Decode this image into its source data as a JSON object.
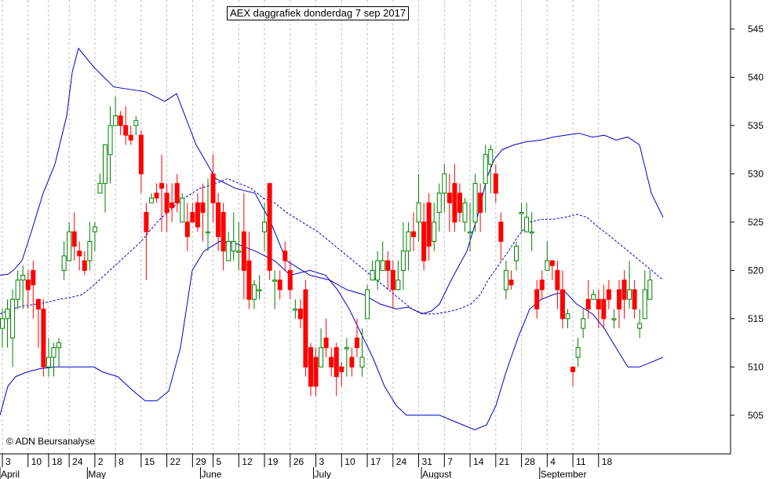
{
  "chart_data": {
    "type": "candlestick",
    "title": "AEX daggrafiek donderdag 7 sep 2017",
    "copyright": "© ADN Beursanalyse",
    "ylim": [
      501,
      548
    ],
    "y_ticks": [
      505,
      510,
      515,
      520,
      525,
      530,
      535,
      540,
      545
    ],
    "grid": "vertical-dashed",
    "y_axis_position": "right",
    "colors": {
      "up": "#008000",
      "down": "#ff0000",
      "bands": "#0000cc",
      "grid": "#bfbfbf"
    },
    "x_day_labels": [
      {
        "label": "3",
        "i": 0
      },
      {
        "label": "10",
        "i": 5
      },
      {
        "label": "18",
        "i": 9
      },
      {
        "label": "24",
        "i": 13
      },
      {
        "label": "2",
        "i": 18
      },
      {
        "label": "8",
        "i": 22
      },
      {
        "label": "15",
        "i": 27
      },
      {
        "label": "22",
        "i": 32
      },
      {
        "label": "29",
        "i": 37
      },
      {
        "label": "5",
        "i": 41
      },
      {
        "label": "12",
        "i": 46
      },
      {
        "label": "19",
        "i": 51
      },
      {
        "label": "26",
        "i": 56
      },
      {
        "label": "3",
        "i": 61
      },
      {
        "label": "10",
        "i": 66
      },
      {
        "label": "17",
        "i": 71
      },
      {
        "label": "24",
        "i": 76
      },
      {
        "label": "31",
        "i": 81
      },
      {
        "label": "7",
        "i": 86
      },
      {
        "label": "14",
        "i": 91
      },
      {
        "label": "21",
        "i": 96
      },
      {
        "label": "28",
        "i": 101
      },
      {
        "label": "4",
        "i": 106
      },
      {
        "label": "11",
        "i": 111
      },
      {
        "label": "18",
        "i": 116
      }
    ],
    "x_month_labels": [
      {
        "label": "April",
        "i": 0
      },
      {
        "label": "May",
        "i": 17
      },
      {
        "label": "June",
        "i": 39
      },
      {
        "label": "July",
        "i": 61
      },
      {
        "label": "August",
        "i": 82
      },
      {
        "label": "September",
        "i": 105
      }
    ],
    "candles": [
      [
        514,
        515,
        512,
        516
      ],
      [
        515,
        516,
        512,
        517
      ],
      [
        513,
        517,
        510,
        518
      ],
      [
        517,
        519,
        516,
        520
      ],
      [
        519,
        519.5,
        516,
        520.5
      ],
      [
        519,
        518,
        516,
        520
      ],
      [
        520,
        518.5,
        515,
        521
      ],
      [
        517,
        516,
        512,
        517
      ],
      [
        516,
        510,
        509,
        517
      ],
      [
        510,
        511,
        509,
        513
      ],
      [
        511,
        512,
        509,
        512.5
      ],
      [
        512,
        512.5,
        510,
        513
      ],
      [
        520,
        521.5,
        519,
        523
      ],
      [
        521,
        524,
        521,
        525
      ],
      [
        524,
        522.5,
        521,
        526
      ],
      [
        522,
        521.5,
        520,
        523
      ],
      [
        521,
        520,
        519.5,
        522
      ],
      [
        521,
        523,
        520,
        525
      ],
      [
        524,
        524.5,
        522,
        525
      ],
      [
        528,
        529,
        528,
        530
      ],
      [
        529,
        533,
        526,
        533
      ],
      [
        532,
        535,
        529,
        537
      ],
      [
        535,
        536,
        535,
        538
      ],
      [
        536,
        535,
        534,
        536.5
      ],
      [
        535,
        534,
        533,
        537
      ],
      [
        534,
        533.5,
        533,
        535
      ],
      [
        535,
        535.5,
        534,
        536
      ],
      [
        534,
        530,
        528,
        534.5
      ],
      [
        526,
        524,
        519,
        527
      ],
      [
        527,
        527.5,
        527,
        528
      ],
      [
        528,
        527.5,
        527,
        529
      ],
      [
        529,
        528.5,
        524,
        532
      ],
      [
        528,
        526,
        524,
        529
      ],
      [
        527,
        526.5,
        525,
        529
      ],
      [
        529,
        527,
        526,
        530
      ],
      [
        525,
        527.5,
        525,
        528
      ],
      [
        525,
        523.5,
        522,
        527
      ],
      [
        526,
        525,
        525,
        527
      ],
      [
        527,
        524.5,
        524,
        528
      ],
      [
        527,
        526,
        523,
        529
      ],
      [
        524,
        524,
        522,
        529.5
      ],
      [
        530,
        527,
        525,
        532
      ],
      [
        527,
        523.5,
        522,
        528
      ],
      [
        526,
        522,
        520,
        527
      ],
      [
        521,
        523,
        521,
        524
      ],
      [
        522,
        523,
        521,
        526
      ],
      [
        522,
        522,
        520,
        525
      ],
      [
        524,
        520,
        517,
        528
      ],
      [
        521,
        517,
        516,
        524
      ],
      [
        517,
        518.5,
        516,
        519
      ],
      [
        518,
        518,
        517,
        519.5
      ],
      [
        524,
        525,
        522,
        527
      ],
      [
        529,
        520,
        519,
        529
      ],
      [
        519,
        519,
        516,
        520
      ],
      [
        519,
        518,
        517,
        520
      ],
      [
        522,
        521,
        520,
        523
      ],
      [
        520,
        518,
        517,
        521
      ],
      [
        516,
        516,
        515,
        517
      ],
      [
        516,
        515,
        514,
        517
      ],
      [
        518,
        510,
        509,
        519
      ],
      [
        512,
        508,
        507,
        512.5
      ],
      [
        511,
        508,
        507,
        512
      ],
      [
        510,
        512,
        510,
        514
      ],
      [
        513,
        512,
        511,
        515
      ],
      [
        511,
        510,
        509,
        512
      ],
      [
        512,
        509,
        507,
        512.5
      ],
      [
        510,
        509.5,
        508,
        510.5
      ],
      [
        512,
        512,
        509,
        513
      ],
      [
        511,
        510,
        509,
        512
      ],
      [
        513,
        512,
        511,
        515
      ],
      [
        510,
        511,
        509,
        514
      ],
      [
        515,
        518,
        515,
        518.5
      ],
      [
        519,
        520,
        519,
        521
      ],
      [
        519,
        521,
        518,
        522
      ],
      [
        520,
        521,
        520,
        523
      ],
      [
        521,
        520,
        518,
        522
      ],
      [
        520,
        518,
        516,
        521
      ],
      [
        518,
        519,
        518,
        521
      ],
      [
        520,
        522,
        518,
        525
      ],
      [
        522,
        524,
        520,
        525
      ],
      [
        524,
        523.5,
        522,
        526
      ],
      [
        525,
        527,
        523,
        530
      ],
      [
        525,
        521,
        520,
        527
      ],
      [
        527,
        522.5,
        521,
        528
      ],
      [
        523,
        525,
        522,
        527
      ],
      [
        526,
        528,
        524,
        529
      ],
      [
        528,
        530,
        526,
        531
      ],
      [
        528,
        527,
        524,
        530
      ],
      [
        529,
        525,
        524,
        531
      ],
      [
        528,
        526,
        525,
        529
      ],
      [
        525,
        527,
        524,
        527.5
      ],
      [
        524,
        524,
        522,
        527
      ],
      [
        525,
        529,
        524,
        530
      ],
      [
        528,
        526,
        524,
        529
      ],
      [
        529,
        532,
        526,
        533
      ],
      [
        531,
        532.5,
        528,
        533
      ],
      [
        530,
        528,
        527,
        531
      ],
      [
        525,
        523,
        521,
        526
      ],
      [
        518,
        520,
        517,
        521
      ],
      [
        519,
        518.5,
        518,
        520
      ],
      [
        521,
        522.5,
        520,
        523
      ],
      [
        526,
        526,
        524,
        527
      ],
      [
        524,
        525.5,
        524,
        527
      ],
      [
        524,
        524,
        522,
        526
      ],
      [
        518,
        516,
        515,
        519
      ],
      [
        519,
        518,
        517,
        520
      ],
      [
        520,
        521,
        520,
        523
      ],
      [
        521,
        520.5,
        519,
        521
      ],
      [
        520,
        518,
        516,
        521
      ],
      [
        518,
        515,
        514,
        520
      ],
      [
        515,
        515.5,
        514,
        516
      ],
      [
        510,
        509.5,
        508,
        510
      ],
      [
        511,
        512,
        510,
        513
      ],
      [
        514,
        515,
        513,
        516
      ],
      [
        517,
        516,
        515,
        519
      ],
      [
        517,
        517.5,
        517,
        518
      ],
      [
        517,
        516,
        514,
        518
      ],
      [
        517,
        515,
        514,
        518.5
      ],
      [
        518,
        517,
        516,
        519
      ],
      [
        515,
        515,
        514,
        516
      ],
      [
        518,
        516,
        514,
        519
      ],
      [
        519,
        517,
        515,
        520
      ],
      [
        517,
        518,
        516,
        521
      ],
      [
        518,
        516,
        515,
        519
      ],
      [
        514,
        514.5,
        513,
        516
      ],
      [
        515,
        518,
        515,
        520
      ],
      [
        517,
        519,
        517,
        520
      ]
    ],
    "band_upper": [
      [
        0,
        519.5
      ],
      [
        10,
        519.6
      ],
      [
        17,
        520
      ],
      [
        28,
        521
      ],
      [
        40,
        524
      ],
      [
        55,
        528
      ],
      [
        70,
        531
      ],
      [
        85,
        536
      ],
      [
        92,
        540.5
      ],
      [
        100,
        543
      ],
      [
        120,
        541
      ],
      [
        145,
        539
      ],
      [
        185,
        538.5
      ],
      [
        210,
        537.5
      ],
      [
        225,
        538.3
      ],
      [
        250,
        533
      ],
      [
        275,
        529.5
      ],
      [
        300,
        528.5
      ],
      [
        325,
        528
      ],
      [
        345,
        525
      ],
      [
        365,
        521
      ],
      [
        395,
        519.5
      ],
      [
        420,
        519
      ],
      [
        442,
        518
      ],
      [
        463,
        517.5
      ],
      [
        485,
        516.5
      ],
      [
        505,
        516
      ],
      [
        520,
        516.2
      ],
      [
        538,
        515.5
      ],
      [
        550,
        515.8
      ],
      [
        560,
        516.5
      ],
      [
        575,
        519
      ],
      [
        595,
        522
      ],
      [
        610,
        526
      ],
      [
        620,
        529.5
      ],
      [
        630,
        531.5
      ],
      [
        640,
        532.5
      ],
      [
        655,
        533
      ],
      [
        670,
        533.3
      ],
      [
        690,
        533.5
      ],
      [
        705,
        533.8
      ],
      [
        720,
        534
      ],
      [
        738,
        534.2
      ],
      [
        755,
        533.8
      ],
      [
        770,
        534
      ],
      [
        785,
        533.5
      ],
      [
        800,
        533.8
      ],
      [
        815,
        533
      ],
      [
        830,
        528
      ],
      [
        845,
        525.5
      ]
    ],
    "band_lower": [
      [
        0,
        505
      ],
      [
        10,
        508
      ],
      [
        20,
        509
      ],
      [
        35,
        509.5
      ],
      [
        50,
        509.8
      ],
      [
        70,
        510
      ],
      [
        100,
        510
      ],
      [
        120,
        510
      ],
      [
        130,
        509.5
      ],
      [
        150,
        509
      ],
      [
        170,
        507.5
      ],
      [
        185,
        506.5
      ],
      [
        200,
        506.5
      ],
      [
        215,
        507.5
      ],
      [
        230,
        512
      ],
      [
        245,
        520
      ],
      [
        260,
        522
      ],
      [
        280,
        523
      ],
      [
        300,
        522.8
      ],
      [
        325,
        522
      ],
      [
        350,
        521
      ],
      [
        370,
        519.5
      ],
      [
        395,
        520
      ],
      [
        415,
        519.5
      ],
      [
        430,
        518
      ],
      [
        445,
        516
      ],
      [
        460,
        513.5
      ],
      [
        475,
        511
      ],
      [
        490,
        508
      ],
      [
        505,
        506
      ],
      [
        518,
        505
      ],
      [
        532,
        505
      ],
      [
        545,
        505
      ],
      [
        560,
        505
      ],
      [
        575,
        504.5
      ],
      [
        590,
        504
      ],
      [
        605,
        503.5
      ],
      [
        620,
        504
      ],
      [
        632,
        506
      ],
      [
        645,
        509.5
      ],
      [
        660,
        513
      ],
      [
        675,
        516
      ],
      [
        690,
        517
      ],
      [
        705,
        517.5
      ],
      [
        720,
        517.8
      ],
      [
        735,
        516.5
      ],
      [
        755,
        515.5
      ],
      [
        770,
        514
      ],
      [
        785,
        512
      ],
      [
        800,
        510
      ],
      [
        815,
        510
      ],
      [
        830,
        510.5
      ],
      [
        845,
        511
      ]
    ],
    "band_middle": [
      [
        0,
        515.5
      ],
      [
        15,
        516
      ],
      [
        30,
        516.3
      ],
      [
        45,
        516.5
      ],
      [
        60,
        516.7
      ],
      [
        75,
        517
      ],
      [
        90,
        517.2
      ],
      [
        105,
        517.5
      ],
      [
        120,
        518.5
      ],
      [
        140,
        520
      ],
      [
        160,
        521.5
      ],
      [
        180,
        523
      ],
      [
        200,
        525
      ],
      [
        220,
        526.5
      ],
      [
        235,
        527.5
      ],
      [
        255,
        528.5
      ],
      [
        275,
        529
      ],
      [
        290,
        529.5
      ],
      [
        305,
        529
      ],
      [
        320,
        528.5
      ],
      [
        335,
        527.5
      ],
      [
        350,
        527
      ],
      [
        365,
        526
      ],
      [
        385,
        525
      ],
      [
        405,
        524
      ],
      [
        420,
        523
      ],
      [
        435,
        522
      ],
      [
        450,
        521
      ],
      [
        465,
        520
      ],
      [
        480,
        519
      ],
      [
        495,
        518
      ],
      [
        510,
        517
      ],
      [
        525,
        516
      ],
      [
        540,
        515.5
      ],
      [
        555,
        515.5
      ],
      [
        570,
        515.7
      ],
      [
        585,
        516
      ],
      [
        600,
        516.5
      ],
      [
        612,
        517.5
      ],
      [
        622,
        519
      ],
      [
        635,
        520.5
      ],
      [
        648,
        522
      ],
      [
        660,
        523.5
      ],
      [
        675,
        525
      ],
      [
        690,
        525.3
      ],
      [
        705,
        525.3
      ],
      [
        720,
        525.5
      ],
      [
        735,
        525.8
      ],
      [
        748,
        525.5
      ],
      [
        762,
        524.5
      ],
      [
        778,
        523.5
      ],
      [
        793,
        522.5
      ],
      [
        808,
        521.5
      ],
      [
        823,
        520.5
      ],
      [
        838,
        519.5
      ],
      [
        845,
        519
      ]
    ]
  }
}
